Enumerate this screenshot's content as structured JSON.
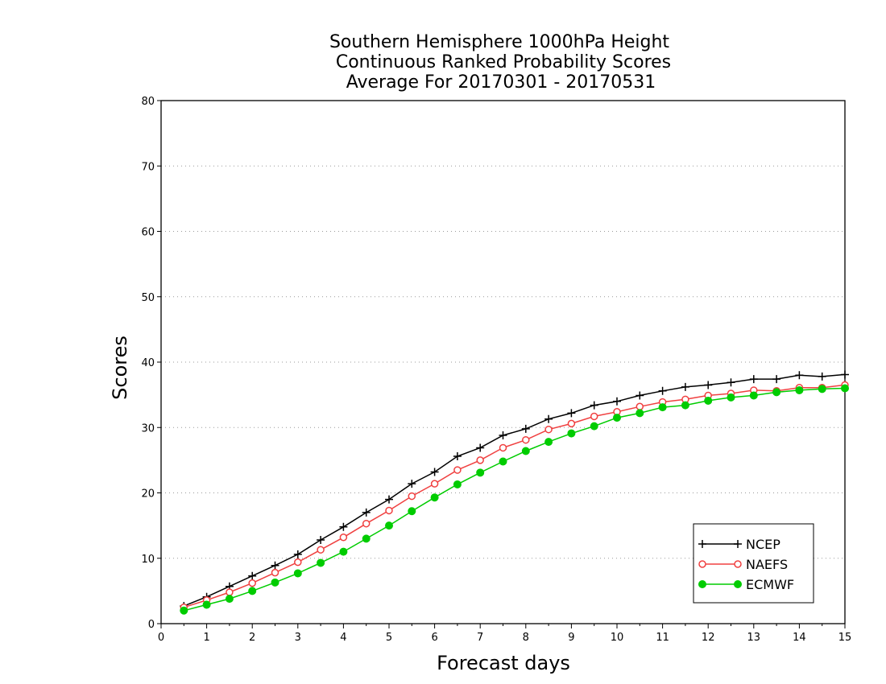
{
  "chart_data": {
    "type": "line",
    "title": [
      "Southern Hemisphere 1000hPa Height",
      "Continuous Ranked Probability Scores",
      "Average For 20170301 - 20170531"
    ],
    "xlabel": "Forecast days",
    "ylabel": "Scores",
    "xlim": [
      0,
      15
    ],
    "ylim": [
      0,
      80
    ],
    "xticks": [
      "0",
      "1",
      "2",
      "3",
      "4",
      "5",
      "6",
      "7",
      "8",
      "9",
      "10",
      "11",
      "12",
      "13",
      "14",
      "15"
    ],
    "yticks": [
      "0",
      "10",
      "20",
      "30",
      "40",
      "50",
      "60",
      "70",
      "80"
    ],
    "grid": "horizontal-dotted",
    "legend_position": "bottom-right",
    "x": [
      0.5,
      1.0,
      1.5,
      2.0,
      2.5,
      3.0,
      3.5,
      4.0,
      4.5,
      5.0,
      5.5,
      6.0,
      6.5,
      7.0,
      7.5,
      8.0,
      8.5,
      9.0,
      9.5,
      10.0,
      10.5,
      11.0,
      11.5,
      12.0,
      12.5,
      13.0,
      13.5,
      14.0,
      14.5,
      15.0
    ],
    "series": [
      {
        "name": "NCEP",
        "color": "#000000",
        "marker": "plus",
        "values": [
          2.7,
          4.1,
          5.7,
          7.3,
          8.9,
          10.6,
          12.8,
          14.8,
          17.0,
          19.0,
          21.4,
          23.2,
          25.6,
          26.9,
          28.8,
          29.8,
          31.3,
          32.2,
          33.4,
          34.0,
          34.9,
          35.6,
          36.2,
          36.5,
          36.9,
          37.4,
          37.4,
          38.0,
          37.8,
          38.1
        ]
      },
      {
        "name": "NAEFS",
        "color": "#f04040",
        "marker": "open-circle",
        "values": [
          2.5,
          3.6,
          4.8,
          6.2,
          7.8,
          9.4,
          11.3,
          13.2,
          15.3,
          17.3,
          19.5,
          21.4,
          23.5,
          25.0,
          26.9,
          28.1,
          29.7,
          30.6,
          31.7,
          32.4,
          33.2,
          33.9,
          34.3,
          34.9,
          35.2,
          35.7,
          35.6,
          36.1,
          36.1,
          36.5
        ]
      },
      {
        "name": "ECMWF",
        "color": "#00cc00",
        "marker": "filled-circle",
        "values": [
          2.0,
          2.9,
          3.8,
          5.0,
          6.3,
          7.7,
          9.3,
          11.0,
          13.0,
          15.0,
          17.2,
          19.3,
          21.3,
          23.1,
          24.8,
          26.4,
          27.8,
          29.1,
          30.2,
          31.5,
          32.2,
          33.1,
          33.4,
          34.1,
          34.6,
          34.9,
          35.4,
          35.7,
          35.9,
          36.0
        ]
      }
    ]
  }
}
